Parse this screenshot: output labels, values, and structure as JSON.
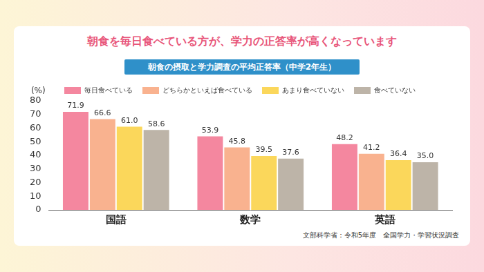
{
  "chart_data": {
    "type": "bar",
    "title": "朝食を毎日食べている方が、学力の正答率が高くなっています",
    "subtitle": "朝食の摂取と学力調査の平均正答率（中学2年生）",
    "y_label": "(%)",
    "source": "文部科学省：令和5年度　全国学力・学習状況調査",
    "categories": [
      "国語",
      "数学",
      "英語"
    ],
    "series": [
      {
        "name": "毎日食べている",
        "color": "#f4879f",
        "values": [
          71.9,
          53.9,
          48.2
        ],
        "value_labels": [
          "71.9",
          "53.9",
          "48.2"
        ]
      },
      {
        "name": "どちらかといえば食べている",
        "color": "#f9b28f",
        "values": [
          66.6,
          45.8,
          41.2
        ],
        "value_labels": [
          "66.6",
          "45.8",
          "41.2"
        ]
      },
      {
        "name": "あまり食べていない",
        "color": "#fbd75b",
        "values": [
          61.0,
          39.5,
          36.4
        ],
        "value_labels": [
          "61.0",
          "39.5",
          "36.4"
        ]
      },
      {
        "name": "食べていない",
        "color": "#bdb4a8",
        "values": [
          58.6,
          37.6,
          35.0
        ],
        "value_labels": [
          "58.6",
          "37.6",
          "35.0"
        ]
      }
    ],
    "ylim": [
      0,
      80
    ],
    "yticks": [
      0,
      10,
      20,
      30,
      40,
      50,
      60,
      70,
      80
    ],
    "grid": false,
    "legend": "top",
    "data_labels": true
  }
}
